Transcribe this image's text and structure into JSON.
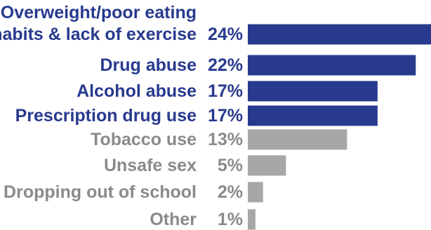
{
  "chart_data": {
    "type": "bar",
    "orientation": "horizontal",
    "title": "",
    "xlabel": "",
    "ylabel": "",
    "xlim": [
      0,
      24
    ],
    "grid": false,
    "legend": "none",
    "value_suffix": "%",
    "categories": [
      [
        "Overweight/poor eating",
        "habits & lack of exercise"
      ],
      [
        "Drug abuse"
      ],
      [
        "Alcohol abuse"
      ],
      [
        "Prescription drug use"
      ],
      [
        "Tobacco use"
      ],
      [
        "Unsafe sex"
      ],
      [
        "Dropping out of school"
      ],
      [
        "Other"
      ]
    ],
    "values": [
      24,
      22,
      17,
      17,
      13,
      5,
      2,
      1
    ],
    "value_labels": [
      "24%",
      "22%",
      "17%",
      "17%",
      "13%",
      "5%",
      "2%",
      "1%"
    ],
    "highlighted": [
      true,
      true,
      true,
      true,
      false,
      false,
      false,
      false
    ]
  },
  "colors": {
    "highlight": "#283a8e",
    "muted": "#a7a7a7",
    "highlight_text": "#283a8e",
    "muted_text": "#8a8a8a"
  }
}
